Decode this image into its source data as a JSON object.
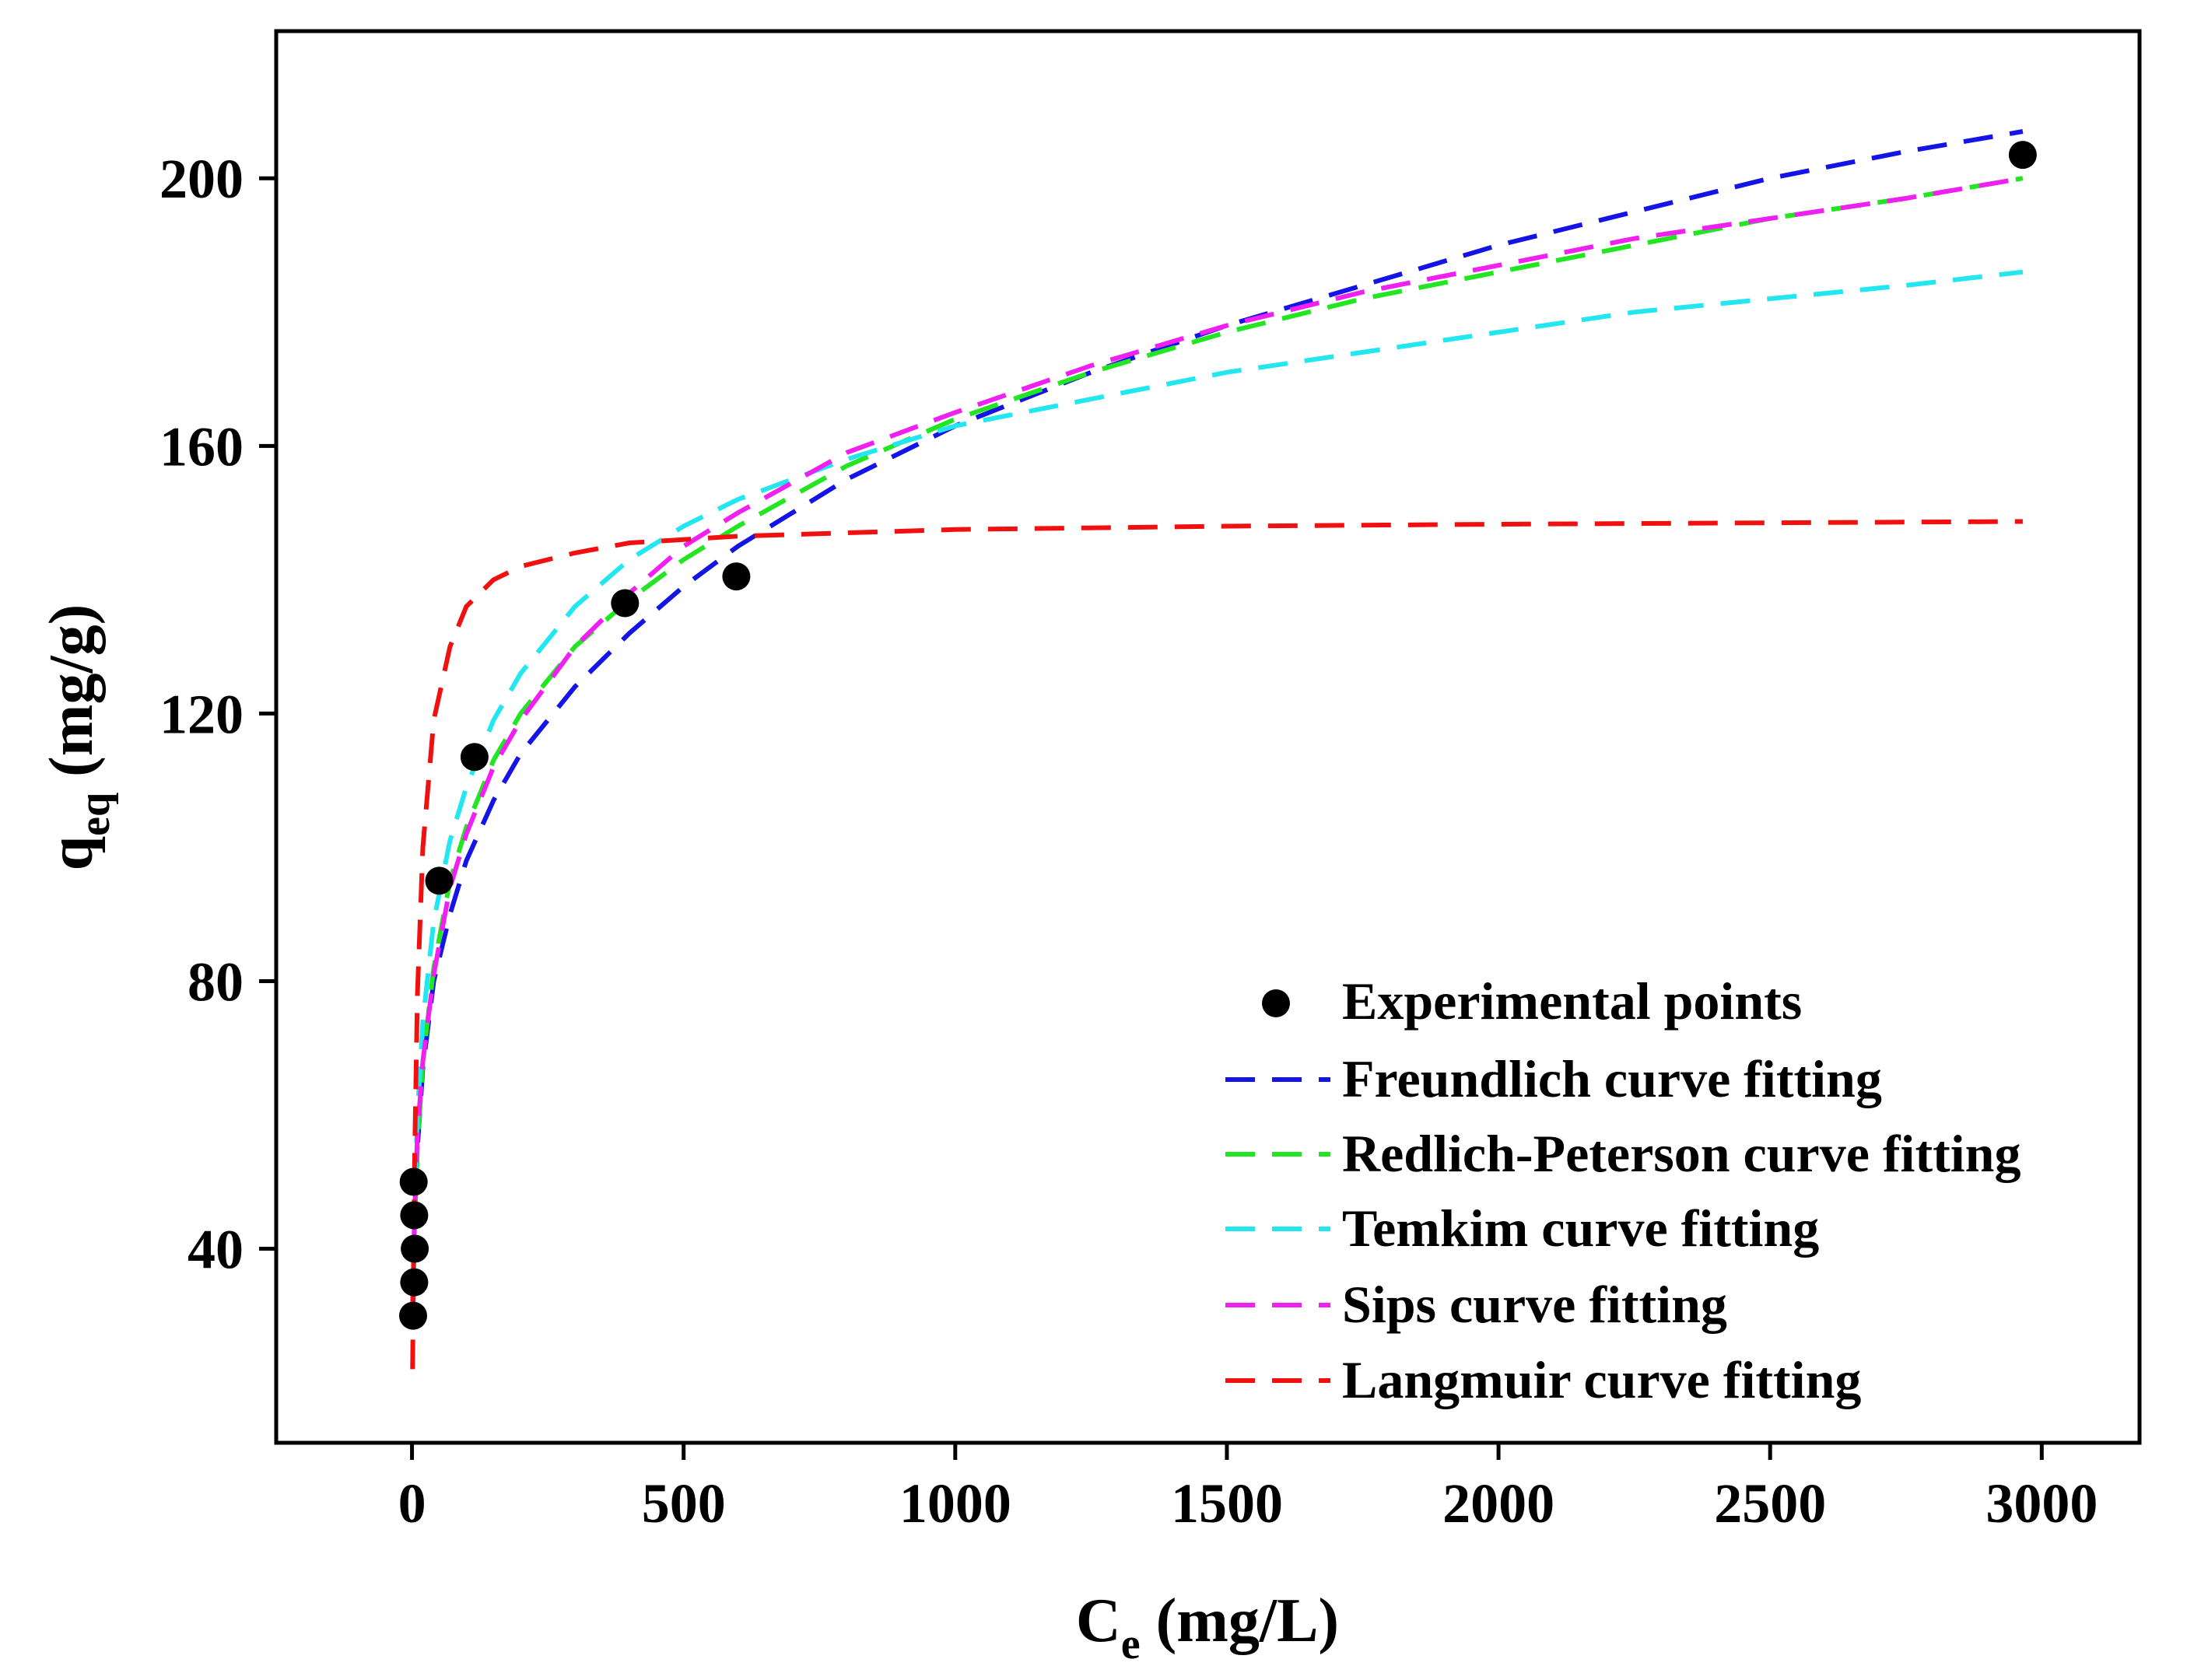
{
  "chart_data": {
    "type": "line",
    "title": "",
    "xlabel": {
      "main": "C",
      "sub": "e",
      "unit": " (mg/L)"
    },
    "ylabel": {
      "main": "q",
      "sub": "eq",
      "unit": " (mg/g)"
    },
    "xlim": [
      -250,
      3180
    ],
    "ylim": [
      11,
      222
    ],
    "xticks": [
      0,
      500,
      1000,
      1500,
      2000,
      2500,
      3000
    ],
    "yticks": [
      40,
      80,
      120,
      160,
      200
    ],
    "grid": false,
    "legend_position": "bottom-right",
    "scatter": {
      "name": "Experimental points",
      "color": "#000000",
      "x": [
        2,
        4,
        5,
        4,
        3,
        50,
        115,
        392,
        597,
        2965
      ],
      "y": [
        30,
        35,
        40,
        45,
        50,
        95,
        113.5,
        136.5,
        140.5,
        203.5
      ]
    },
    "series": [
      {
        "name": "Freundlich curve fitting",
        "color": "#1414e6",
        "x": [
          2,
          5,
          10,
          20,
          40,
          70,
          100,
          150,
          200,
          300,
          400,
          500,
          600,
          800,
          1000,
          1250,
          1500,
          1750,
          2000,
          2250,
          2500,
          2750,
          2965
        ],
        "y": [
          35,
          45,
          55,
          67,
          80,
          90,
          98,
          107,
          114,
          124,
          132,
          139,
          145,
          155,
          163,
          171,
          178,
          184,
          190,
          195,
          200,
          204,
          207
        ]
      },
      {
        "name": "Redlich-Peterson curve fitting",
        "color": "#22e622",
        "x": [
          1,
          5,
          10,
          20,
          40,
          70,
          100,
          150,
          200,
          300,
          400,
          500,
          600,
          800,
          1000,
          1250,
          1500,
          1750,
          2000,
          2250,
          2500,
          2750,
          2965
        ],
        "y": [
          30,
          44,
          55,
          68,
          82,
          95,
          103,
          113,
          120,
          130,
          137,
          143,
          148,
          157,
          164,
          171,
          177,
          182,
          186,
          190,
          194,
          197,
          200
        ]
      },
      {
        "name": "Temkim curve fitting",
        "color": "#22e6f0",
        "x": [
          1,
          5,
          10,
          20,
          40,
          70,
          100,
          150,
          200,
          300,
          400,
          500,
          600,
          800,
          1000,
          1250,
          1500,
          1750,
          2000,
          2250,
          2500,
          2750,
          2965
        ],
        "y": [
          28,
          47,
          60,
          74,
          89,
          101,
          109,
          119,
          126,
          136,
          143,
          148,
          152,
          158,
          163,
          167,
          171,
          174,
          177,
          180,
          182,
          184,
          186
        ]
      },
      {
        "name": "Sips curve fitting",
        "color": "#f020f0",
        "x": [
          1,
          5,
          10,
          20,
          40,
          70,
          100,
          150,
          200,
          300,
          400,
          500,
          600,
          800,
          1000,
          1250,
          1500,
          1750,
          2000,
          2250,
          2500,
          2750,
          2965
        ],
        "y": [
          32,
          46,
          57,
          68,
          81,
          94,
          102,
          112,
          119,
          130,
          138,
          145,
          150,
          159,
          165,
          172,
          178,
          183,
          187,
          191,
          194,
          197,
          200
        ]
      },
      {
        "name": "Langmuir curve fitting",
        "color": "#f01010",
        "x": [
          1,
          3,
          5,
          10,
          20,
          40,
          70,
          100,
          150,
          200,
          300,
          400,
          500,
          600,
          800,
          1000,
          1500,
          2000,
          2500,
          2965
        ],
        "y": [
          22,
          40,
          55,
          78,
          100,
          119,
          130,
          136,
          140,
          142,
          144,
          145.5,
          146,
          146.5,
          147,
          147.5,
          148,
          148.3,
          148.5,
          148.7
        ]
      }
    ]
  }
}
